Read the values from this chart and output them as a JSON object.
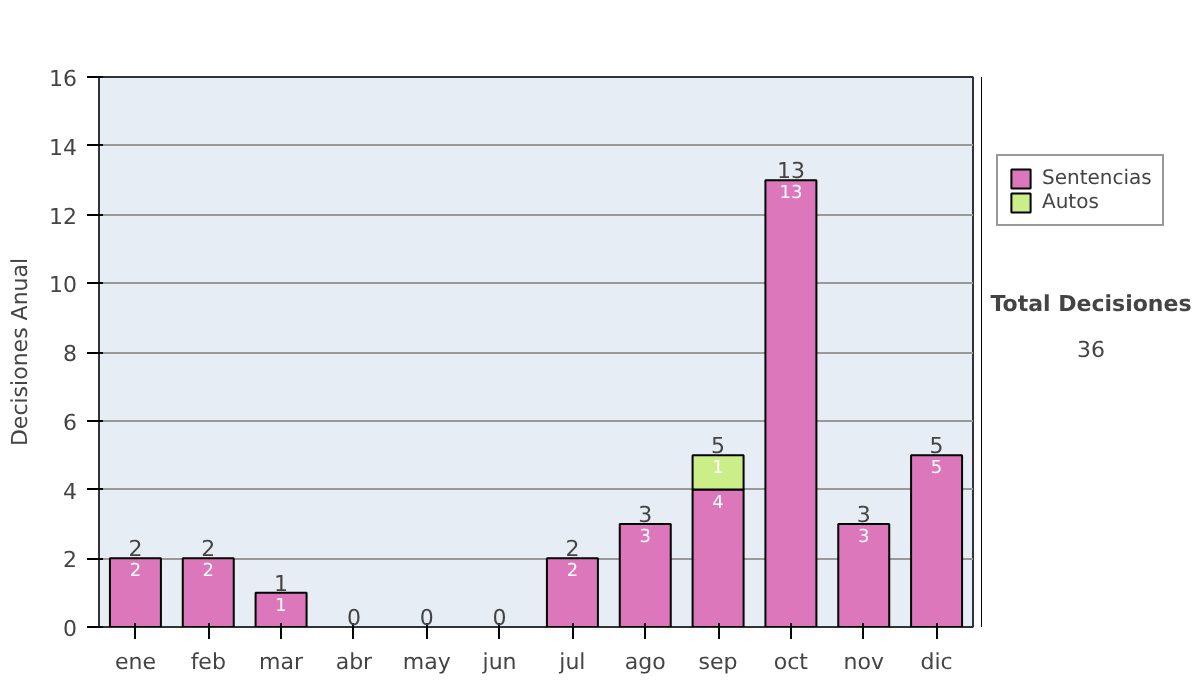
{
  "chart_data": {
    "type": "bar",
    "stacked": true,
    "ylabel": "Decisiones Anual",
    "categories": [
      "ene",
      "feb",
      "mar",
      "abr",
      "may",
      "jun",
      "jul",
      "ago",
      "sep",
      "oct",
      "nov",
      "dic"
    ],
    "series": [
      {
        "name": "Sentencias",
        "color": "#dd77bb",
        "values": [
          2,
          2,
          1,
          0,
          0,
          0,
          2,
          3,
          4,
          13,
          3,
          5
        ],
        "value_labels": [
          "2",
          "2",
          "1",
          null,
          null,
          null,
          "2",
          "3",
          "4",
          "13",
          "3",
          "5"
        ]
      },
      {
        "name": "Autos",
        "color": "#ccee88",
        "values": [
          0,
          0,
          0,
          0,
          0,
          0,
          0,
          0,
          1,
          0,
          0,
          0
        ],
        "value_labels": [
          null,
          null,
          null,
          null,
          null,
          null,
          null,
          null,
          "1",
          null,
          null,
          null
        ]
      }
    ],
    "totals": [
      "2",
      "2",
      "1",
      "0",
      "0",
      "0",
      "2",
      "3",
      "5",
      "13",
      "3",
      "5"
    ],
    "ylim": [
      0,
      16
    ],
    "yticks": [
      0,
      2,
      4,
      6,
      8,
      10,
      12,
      14,
      16
    ],
    "grid": "y",
    "legend": "right",
    "annotations": [
      "Total Decisiones",
      "36"
    ]
  }
}
